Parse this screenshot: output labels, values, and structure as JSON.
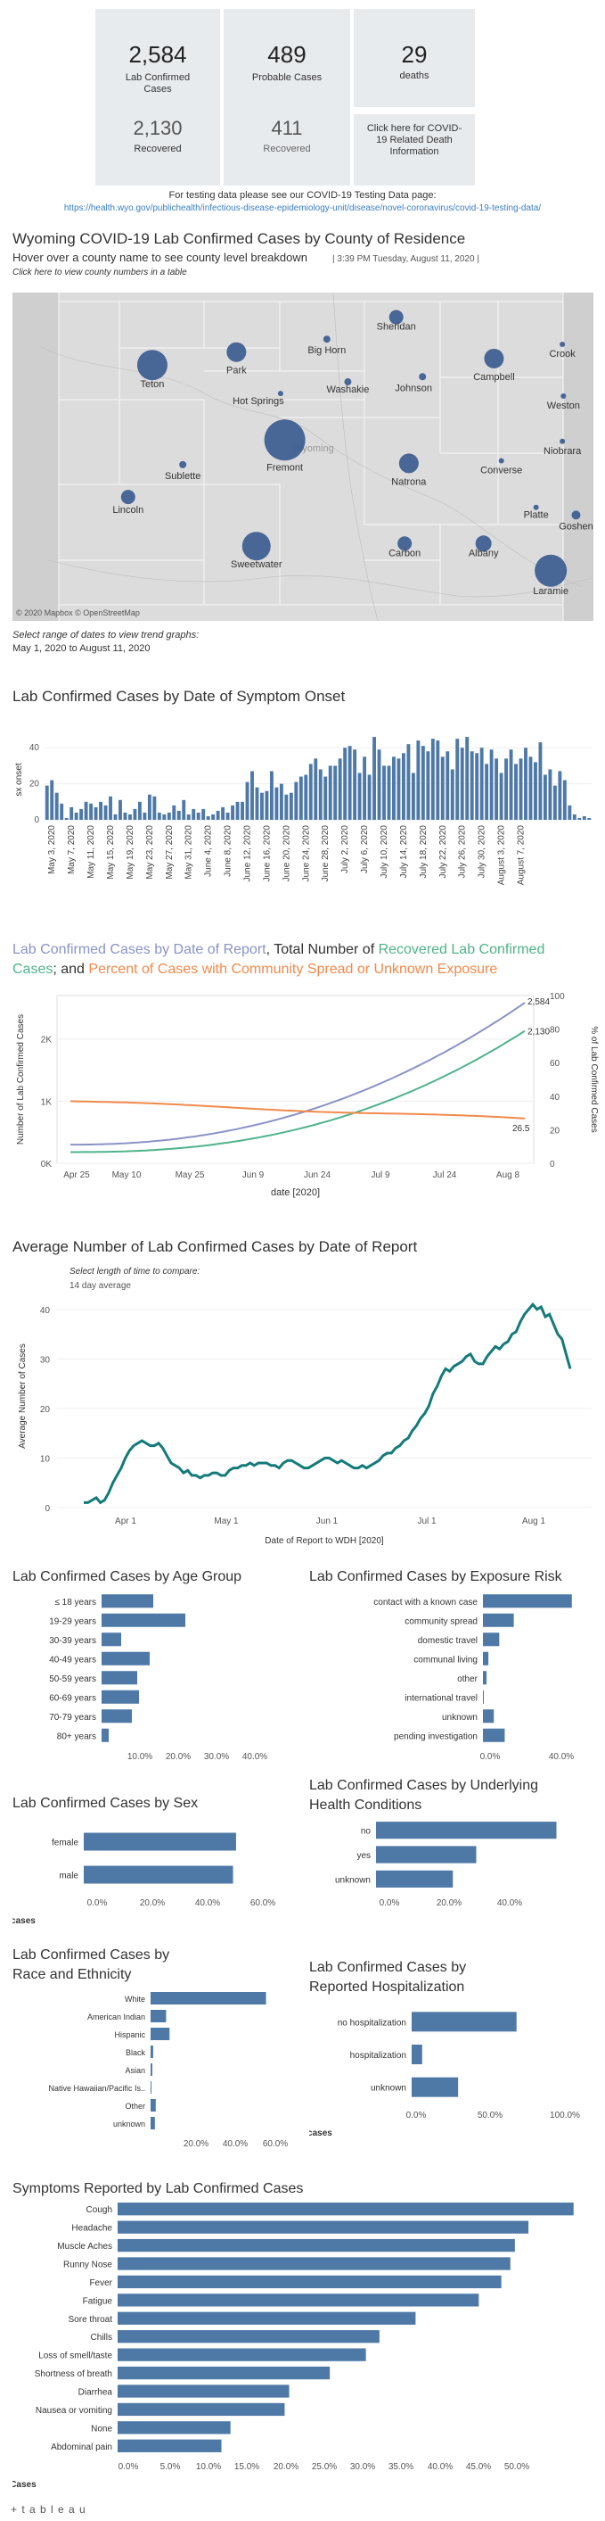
{
  "colors": {
    "accent": "#4e79a7",
    "blue_line": "#8b93c6",
    "green_line": "#4fb38a",
    "orange_line": "#f08a4b",
    "map_bg": "#d9d9d9"
  },
  "kpis": {
    "lab_confirmed": {
      "value": "2,584",
      "label": "Lab Confirmed Cases"
    },
    "probable": {
      "value": "489",
      "label": "Probable Cases"
    },
    "deaths": {
      "value": "29",
      "label": "deaths"
    },
    "lab_recovered": {
      "value": "2,130",
      "label": "Recovered"
    },
    "probable_recovered": {
      "value": "411",
      "label": "Recovered"
    },
    "death_info": {
      "label": "Click here for COVID-19 Related Death Information"
    }
  },
  "testing": {
    "text": "For testing data please see our COVID-19 Testing Data page:",
    "link": "https://health.wyo.gov/publichealth/infectious-disease-epidemiology-unit/disease/novel-coronavirus/covid-19-testing-data/"
  },
  "map": {
    "title": "Wyoming COVID-19 Lab Confirmed Cases by County of Residence",
    "subtitle": "Hover over a county name to see county level breakdown",
    "timestamp": "| 3:39 PM Tuesday, August 11, 2020 |",
    "click_note": "Click here to view county numbers in a table",
    "state_label": "Wyoming",
    "attribution": "© 2020 Mapbox © OpenStreetMap",
    "counties": [
      "Park",
      "Big Horn",
      "Sheridan",
      "Crook",
      "Teton",
      "Hot Springs",
      "Washakie",
      "Johnson",
      "Campbell",
      "Weston",
      "Fremont",
      "Natrona",
      "Converse",
      "Niobrara",
      "Sublette",
      "Lincoln",
      "Platte",
      "Goshen",
      "Sweetwater",
      "Carbon",
      "Albany",
      "Laramie"
    ]
  },
  "date_range": {
    "label": "Select range of dates to view trend graphs:",
    "value": "May 1, 2020 to August 11, 2020"
  },
  "onset_chart": {
    "title": "Lab Confirmed Cases by Date of Symptom Onset",
    "ylabel": "sx onset",
    "yticks": [
      "0",
      "20",
      "40"
    ],
    "xticks": [
      "May 3, 2020",
      "May 7, 2020",
      "May 11, 2020",
      "May 15, 2020",
      "May 19, 2020",
      "May 23, 2020",
      "May 27, 2020",
      "May 31, 2020",
      "June 4, 2020",
      "June 8, 2020",
      "June 12, 2020",
      "June 16, 2020",
      "June 20, 2020",
      "June 24, 2020",
      "June 28, 2020",
      "July 2, 2020",
      "July 6, 2020",
      "July 10, 2020",
      "July 14, 2020",
      "July 18, 2020",
      "July 22, 2020",
      "July 26, 2020",
      "July 30, 2020",
      "August 3, 2020",
      "August 7, 2020"
    ]
  },
  "report_chart": {
    "title_a": "Lab Confirmed Cases by Date of Report",
    "title_b": ", Total Number of ",
    "title_c": "Recovered Lab Confirmed Cases",
    "title_d": "; and ",
    "title_e": "Percent of Cases with Community Spread or Unknown Exposure",
    "ylabel_left": "Number of Lab Confirmed Cases",
    "ylabel_right": "% of Lab Confirmed Cases",
    "xlabel": "date [2020]",
    "yticks_left": [
      "0K",
      "1K",
      "2K"
    ],
    "yticks_right": [
      "0",
      "20",
      "40",
      "60",
      "80",
      "100"
    ],
    "xticks": [
      "Apr 25",
      "May 10",
      "May 25",
      "Jun 9",
      "Jun 24",
      "Jul 9",
      "Jul 24",
      "Aug 8"
    ],
    "end_labels": {
      "confirmed": "2,584",
      "recovered": "2,130",
      "percent": "26.5"
    }
  },
  "avg_chart": {
    "title": "Average Number of Lab Confirmed Cases by Date of Report",
    "select_label": "Select length of time to compare:",
    "select_value": "14 day average",
    "ylabel": "Average Number of Cases",
    "xlabel": "Date of Report to WDH [2020]",
    "yticks": [
      "0",
      "10",
      "20",
      "30",
      "40"
    ],
    "xticks": [
      "Apr 1",
      "May 1",
      "Jun 1",
      "Jul 1",
      "Aug 1"
    ]
  },
  "chart_data": [
    {
      "type": "bar",
      "title": "Lab Confirmed Cases by Date of Symptom Onset",
      "ylabel": "sx onset",
      "ylim": [
        0,
        50
      ],
      "values": [
        19,
        22,
        15,
        9,
        1,
        7,
        4,
        6,
        10,
        9,
        7,
        10,
        8,
        13,
        3,
        11,
        4,
        3,
        6,
        10,
        4,
        14,
        13,
        4,
        3,
        4,
        8,
        5,
        11,
        3,
        6,
        4,
        6,
        2,
        3,
        5,
        7,
        4,
        8,
        10,
        10,
        21,
        27,
        18,
        15,
        16,
        27,
        18,
        20,
        14,
        15,
        21,
        24,
        25,
        31,
        34,
        28,
        24,
        30,
        30,
        34,
        40,
        41,
        39,
        26,
        35,
        25,
        46,
        39,
        30,
        30,
        35,
        34,
        37,
        42,
        26,
        44,
        41,
        38,
        45,
        44,
        35,
        38,
        28,
        45,
        40,
        46,
        38,
        37,
        40,
        31,
        39,
        34,
        26,
        34,
        39,
        31,
        34,
        40,
        35,
        32,
        43,
        25,
        28,
        19,
        27,
        22,
        8,
        3,
        1,
        2,
        1
      ]
    },
    {
      "type": "line",
      "title": "Lab Confirmed Cases by Date of Report",
      "xlabel": "date [2020]",
      "x_range": [
        "Apr 19",
        "Aug 11"
      ],
      "series": [
        {
          "name": "Lab Confirmed Cases by Date of Report",
          "y_start": 300,
          "y_end": 2584
        },
        {
          "name": "Recovered Lab Confirmed Cases",
          "y_start": 180,
          "y_end": 2130
        },
        {
          "name": "Percent of Cases with Community Spread or Unknown Exposure",
          "y_start": 37,
          "y_end": 26.5
        }
      ]
    },
    {
      "type": "line",
      "title": "Average Number of Lab Confirmed Cases by Date of Report",
      "xlabel": "Date of Report to WDH [2020]",
      "ylim": [
        0,
        45
      ],
      "values": [
        1,
        1,
        1.5,
        2,
        1,
        1.5,
        3,
        5,
        6.5,
        8,
        10,
        11.5,
        12.5,
        13,
        13.5,
        13,
        12.5,
        12.5,
        13,
        12,
        10.5,
        9,
        8.5,
        8,
        7,
        7.5,
        6.5,
        6.5,
        6,
        6.5,
        6.5,
        7,
        7,
        6.5,
        6.5,
        7.5,
        8,
        8,
        8.5,
        8.5,
        9,
        8.5,
        9,
        9,
        9,
        8.5,
        8.5,
        8,
        9,
        9.5,
        9.5,
        9,
        8.5,
        8,
        8,
        8.5,
        9,
        9.5,
        10,
        10,
        9.5,
        9,
        9.5,
        9,
        8.5,
        8,
        8,
        8.5,
        8,
        8.5,
        9,
        9.5,
        10.5,
        11,
        11,
        12,
        12.5,
        13.5,
        14,
        15.5,
        16.5,
        18,
        19,
        20.5,
        23,
        24.5,
        26.5,
        28,
        27.5,
        28.5,
        29,
        29.5,
        30.5,
        31,
        29.5,
        29,
        29,
        30.5,
        31.5,
        32.5,
        32,
        33,
        33.5,
        35,
        35.5,
        37.5,
        39,
        40,
        41,
        40,
        40.5,
        38.5,
        39,
        37,
        35,
        34,
        31,
        28
      ]
    },
    {
      "type": "bar",
      "title": "Lab Confirmed Cases by Age Group",
      "categories": [
        "≤ 18 years",
        "19-29 years",
        "30-39 years",
        "40-49 years",
        "50-59 years",
        "60-69 years",
        "70-79 years",
        "80+ years"
      ],
      "values": [
        14.5,
        23.5,
        5.5,
        13.5,
        10,
        10.5,
        8.5,
        2
      ],
      "xticks": [
        "10.0%",
        "20.0%",
        "30.0%",
        "40.0%"
      ]
    },
    {
      "type": "bar",
      "title": "Lab Confirmed Cases by Exposure Risk",
      "categories": [
        "contact with a known case",
        "community spread",
        "domestic travel",
        "communal living",
        "other",
        "international travel",
        "unknown",
        "pending investigation"
      ],
      "values": [
        49,
        17,
        9,
        3,
        2,
        0.5,
        6,
        12
      ],
      "xticks": [
        "0.0%",
        "40.0%"
      ]
    },
    {
      "type": "bar",
      "title": "Lab Confirmed Cases by Sex",
      "categories": [
        "female",
        "male"
      ],
      "values": [
        50.5,
        49.5
      ],
      "xticks": [
        "0.0%",
        "20.0%",
        "40.0%",
        "60.0%"
      ],
      "xlabel": "% of cases"
    },
    {
      "type": "bar",
      "title": "Lab Confirmed Cases by Underlying Health Conditions",
      "categories": [
        "no",
        "yes",
        "unknown"
      ],
      "values": [
        54,
        30,
        23
      ],
      "xticks": [
        "0.0%",
        "20.0%",
        "40.0%"
      ]
    },
    {
      "type": "bar",
      "title": "Lab Confirmed Cases by Race and Ethnicity",
      "categories": [
        "White",
        "American Indian",
        "Hispanic",
        "Black",
        "Asian",
        "Native Hawaiian/Pacific Is..",
        "Other",
        "unknown"
      ],
      "values": [
        67,
        9,
        11,
        1.5,
        1,
        0.5,
        3,
        2.5
      ],
      "xticks": [
        "20.0%",
        "40.0%",
        "60.0%"
      ]
    },
    {
      "type": "bar",
      "title": "Lab Confirmed Cases by Reported Hospitalization",
      "categories": [
        "no hospitalization",
        "hospitalization",
        "unknown"
      ],
      "values": [
        70,
        7,
        31
      ],
      "xticks": [
        "0.0%",
        "50.0%",
        "100.0%"
      ],
      "xlabel": "% of cases"
    },
    {
      "type": "bar",
      "title": "Symptoms Reported by Lab Confirmed Cases",
      "categories": [
        "Cough",
        "Headache",
        "Muscle Aches",
        "Runny Nose",
        "Fever",
        "Fatigue",
        "Sore throat",
        "Chills",
        "Loss of smell/taste",
        "Shortness of breath",
        "Diarrhea",
        "Nausea or vomiting",
        "None",
        "Abdominal pain"
      ],
      "values": [
        50.5,
        45.5,
        44,
        43.5,
        42.5,
        40,
        33,
        29,
        27.5,
        23.5,
        19,
        18.5,
        12.5,
        11.5
      ],
      "xticks": [
        "0.0%",
        "5.0%",
        "10.0%",
        "15.0%",
        "20.0%",
        "25.0%",
        "30.0%",
        "35.0%",
        "40.0%",
        "45.0%",
        "50.0%"
      ],
      "xlabel": "% of Cases"
    }
  ],
  "panels": {
    "age": {
      "title": "Lab Confirmed Cases by Age Group"
    },
    "exposure": {
      "title": "Lab Confirmed Cases by Exposure Risk"
    },
    "sex": {
      "title": "Lab Confirmed Cases by Sex"
    },
    "health": {
      "title_1": "Lab Confirmed Cases by Underlying",
      "title_2": "Health Conditions"
    },
    "race": {
      "title_1": "Lab Confirmed Cases by",
      "title_2": "Race and Ethnicity"
    },
    "hosp": {
      "title_1": "Lab Confirmed Cases by",
      "title_2": "Reported Hospitalization"
    },
    "symptoms": {
      "title": "Symptoms Reported by Lab Confirmed Cases"
    }
  },
  "footer": {
    "brand": "+ t a b l e a u"
  }
}
